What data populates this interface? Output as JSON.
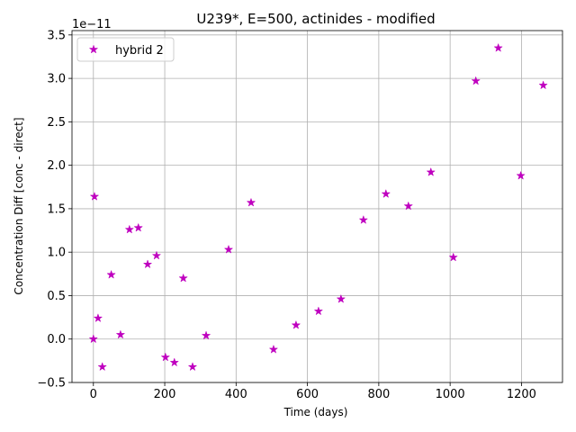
{
  "chart_data": {
    "type": "scatter",
    "title": "U239*, E=500, actinides - modified",
    "xlabel": "Time (days)",
    "ylabel": "Concentration Diff [conc - direct]",
    "y_multiplier_label": "1e−11",
    "xlim": [
      -60,
      1315
    ],
    "ylim": [
      -0.5,
      3.55
    ],
    "y_scale_exponent": -11,
    "x_ticks": [
      0,
      200,
      400,
      600,
      800,
      1000,
      1200
    ],
    "x_tick_labels": [
      "0",
      "200",
      "400",
      "600",
      "800",
      "1000",
      "1200"
    ],
    "y_ticks": [
      -0.5,
      0.0,
      0.5,
      1.0,
      1.5,
      2.0,
      2.5,
      3.0,
      3.5
    ],
    "y_tick_labels": [
      "−0.5",
      "0.0",
      "0.5",
      "1.0",
      "1.5",
      "2.0",
      "2.5",
      "3.0",
      "3.5"
    ],
    "grid": true,
    "legend_position": "top-left",
    "series": [
      {
        "name": "hybrid 2",
        "color": "#bf00bf",
        "marker": "star",
        "x": [
          0,
          3,
          13,
          25,
          50,
          76,
          101,
          126,
          152,
          177,
          202,
          227,
          252,
          278,
          316,
          379,
          442,
          505,
          568,
          631,
          694,
          757,
          820,
          883,
          946,
          1009,
          1072,
          1135,
          1198,
          1261
        ],
        "y": [
          0.0,
          1.64,
          0.24,
          -0.32,
          0.74,
          0.05,
          1.26,
          1.28,
          0.86,
          0.96,
          -0.21,
          -0.27,
          0.7,
          -0.32,
          0.04,
          1.03,
          1.57,
          -0.12,
          0.16,
          0.32,
          0.46,
          1.37,
          1.67,
          1.53,
          1.92,
          0.94,
          2.97,
          3.35,
          1.88,
          2.92
        ]
      }
    ]
  }
}
